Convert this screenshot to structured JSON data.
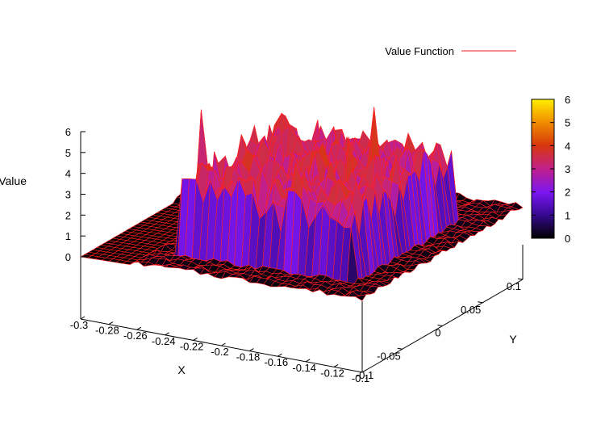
{
  "chart_data": {
    "type": "surface3d",
    "title": "",
    "legend": {
      "series_name": "Value Function",
      "color": "#ee2222",
      "placement": "top-right"
    },
    "xlabel": "X",
    "ylabel": "Y",
    "zlabel": "Value",
    "xlim": [
      -0.3,
      -0.1
    ],
    "ylim": [
      -0.1,
      0.1
    ],
    "zlim": [
      0,
      6
    ],
    "x_ticks": [
      "-0.3",
      "-0.28",
      "-0.26",
      "-0.24",
      "-0.22",
      "-0.2",
      "-0.18",
      "-0.16",
      "-0.14",
      "-0.12",
      "-0.1"
    ],
    "y_ticks": [
      "-0.05",
      "0",
      "0.05",
      "0.1"
    ],
    "z_ticks": [
      "0",
      "1",
      "2",
      "3",
      "4",
      "5",
      "6"
    ],
    "colorbar": {
      "min": 0,
      "max": 6,
      "ticks": [
        "0",
        "1",
        "2",
        "3",
        "4",
        "5",
        "6"
      ],
      "palette": "black-blue-purple-red-orange-yellow"
    },
    "surface": {
      "flat_region_value": 0,
      "noise_floor_value": 0,
      "plateau_value_range": [
        2,
        4
      ],
      "max_value": 6,
      "peaks": [
        {
          "x": -0.16,
          "y": -0.02,
          "value": 6
        },
        {
          "x": -0.155,
          "y": 0.02,
          "value": 5.5
        },
        {
          "x": -0.17,
          "y": 0.06,
          "value": 5.0
        },
        {
          "x": -0.26,
          "y": 0.02,
          "value": 5.7
        },
        {
          "x": -0.2,
          "y": 0.05,
          "value": 4.2
        }
      ]
    }
  },
  "labels": {
    "legend_text": "Value Function",
    "zlabel": "Value",
    "xlabel": "X",
    "ylabel": "Y"
  }
}
